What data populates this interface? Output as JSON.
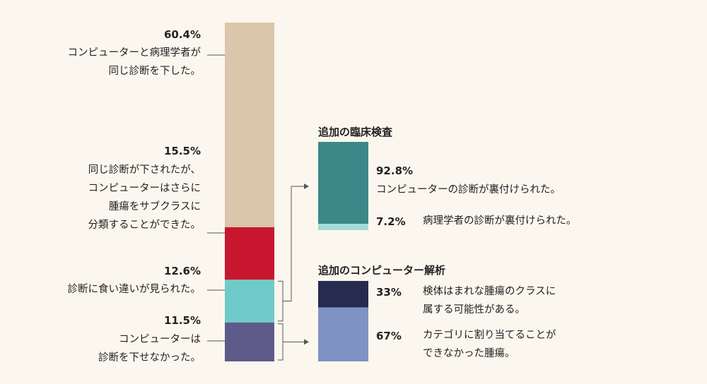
{
  "chart_data": {
    "type": "bar",
    "main_bar": {
      "segments": [
        {
          "value": 60.4,
          "pct_label": "60.4%",
          "label_lines": [
            "コンピューターと病理学者が",
            "同じ診断を下した。"
          ],
          "color": "#d9c6ab"
        },
        {
          "value": 15.5,
          "pct_label": "15.5%",
          "label_lines": [
            "同じ診断が下されたが、",
            "コンピューターはさらに",
            "腫瘍をサブクラスに",
            "分類することができた。"
          ],
          "color": "#c8162f"
        },
        {
          "value": 12.6,
          "pct_label": "12.6%",
          "label_lines": [
            "診断に食い違いが見られた。"
          ],
          "color": "#6ecbc9"
        },
        {
          "value": 11.5,
          "pct_label": "11.5%",
          "label_lines": [
            "コンピューターは",
            "診断を下せなかった。"
          ],
          "color": "#5e5b8a"
        }
      ]
    },
    "sub_bars": [
      {
        "title": "追加の臨床検査",
        "segments": [
          {
            "value": 92.8,
            "pct_label": "92.8%",
            "label_lines": [
              "コンピューターの診断が裏付けられた。"
            ],
            "color": "#3c8888"
          },
          {
            "value": 7.2,
            "pct_label": "7.2%",
            "label_lines": [
              "病理学者の診断が裏付けられた。"
            ],
            "color": "#a2dcd6"
          }
        ]
      },
      {
        "title": "追加のコンピューター解析",
        "segments": [
          {
            "value": 33,
            "pct_label": "33%",
            "label_lines": [
              "検体はまれな腫瘍のクラスに",
              "属する可能性がある。"
            ],
            "color": "#272b4f"
          },
          {
            "value": 67,
            "pct_label": "67%",
            "label_lines": [
              "カテゴリに割り当てることが",
              "できなかった腫瘍。"
            ],
            "color": "#7e93c4"
          }
        ]
      }
    ]
  }
}
